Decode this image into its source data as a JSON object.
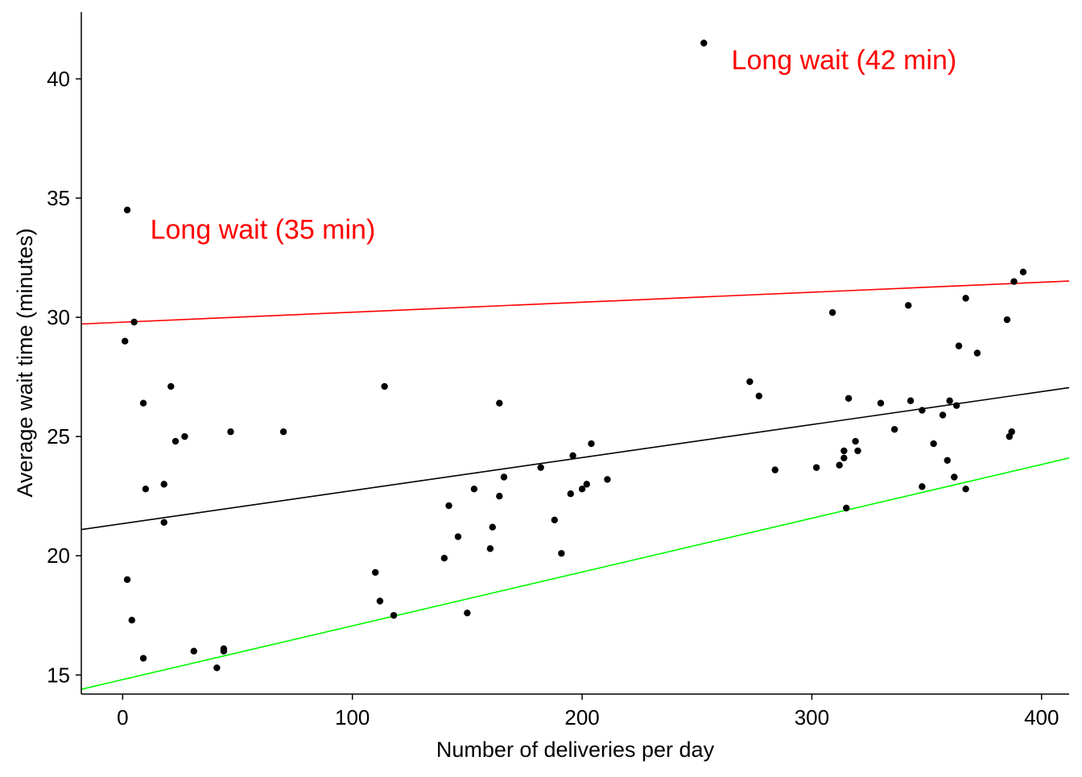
{
  "chart_data": {
    "type": "scatter",
    "title": "",
    "xlabel": "Number of deliveries per day",
    "ylabel": "Average wait time (minutes)",
    "xlim": [
      -18,
      412
    ],
    "ylim": [
      14.2,
      42.8
    ],
    "xticks": [
      0,
      100,
      200,
      300,
      400
    ],
    "yticks": [
      15,
      20,
      25,
      30,
      35,
      40
    ],
    "x_tick_labels": [
      "0",
      "100",
      "200",
      "300",
      "400"
    ],
    "y_tick_labels": [
      "15",
      "20",
      "25",
      "30",
      "35",
      "40"
    ],
    "grid": false,
    "point_color": "#000000",
    "points": [
      {
        "x": 1,
        "y": 29.0
      },
      {
        "x": 2,
        "y": 34.5
      },
      {
        "x": 2,
        "y": 19.0
      },
      {
        "x": 4,
        "y": 17.3
      },
      {
        "x": 5,
        "y": 29.8
      },
      {
        "x": 9,
        "y": 26.4
      },
      {
        "x": 9,
        "y": 15.7
      },
      {
        "x": 10,
        "y": 22.8
      },
      {
        "x": 18,
        "y": 23.0
      },
      {
        "x": 18,
        "y": 21.4
      },
      {
        "x": 21,
        "y": 27.1
      },
      {
        "x": 23,
        "y": 24.8
      },
      {
        "x": 27,
        "y": 25.0
      },
      {
        "x": 31,
        "y": 16.0
      },
      {
        "x": 41,
        "y": 15.3
      },
      {
        "x": 44,
        "y": 16.1
      },
      {
        "x": 44,
        "y": 16.0
      },
      {
        "x": 47,
        "y": 25.2
      },
      {
        "x": 70,
        "y": 25.2
      },
      {
        "x": 110,
        "y": 19.3
      },
      {
        "x": 112,
        "y": 18.1
      },
      {
        "x": 114,
        "y": 27.1
      },
      {
        "x": 118,
        "y": 17.5
      },
      {
        "x": 140,
        "y": 19.9
      },
      {
        "x": 142,
        "y": 22.1
      },
      {
        "x": 146,
        "y": 20.8
      },
      {
        "x": 150,
        "y": 17.6
      },
      {
        "x": 153,
        "y": 22.8
      },
      {
        "x": 160,
        "y": 20.3
      },
      {
        "x": 161,
        "y": 21.2
      },
      {
        "x": 164,
        "y": 26.4
      },
      {
        "x": 164,
        "y": 22.5
      },
      {
        "x": 166,
        "y": 23.3
      },
      {
        "x": 182,
        "y": 23.7
      },
      {
        "x": 188,
        "y": 21.5
      },
      {
        "x": 191,
        "y": 20.1
      },
      {
        "x": 195,
        "y": 22.6
      },
      {
        "x": 196,
        "y": 24.2
      },
      {
        "x": 200,
        "y": 22.8
      },
      {
        "x": 202,
        "y": 23.0
      },
      {
        "x": 204,
        "y": 24.7
      },
      {
        "x": 211,
        "y": 23.2
      },
      {
        "x": 253,
        "y": 41.5
      },
      {
        "x": 273,
        "y": 27.3
      },
      {
        "x": 277,
        "y": 26.7
      },
      {
        "x": 284,
        "y": 23.6
      },
      {
        "x": 302,
        "y": 23.7
      },
      {
        "x": 309,
        "y": 30.2
      },
      {
        "x": 312,
        "y": 23.8
      },
      {
        "x": 314,
        "y": 24.1
      },
      {
        "x": 314,
        "y": 24.4
      },
      {
        "x": 315,
        "y": 22.0
      },
      {
        "x": 316,
        "y": 26.6
      },
      {
        "x": 319,
        "y": 24.8
      },
      {
        "x": 320,
        "y": 24.4
      },
      {
        "x": 330,
        "y": 26.4
      },
      {
        "x": 336,
        "y": 25.3
      },
      {
        "x": 342,
        "y": 30.5
      },
      {
        "x": 343,
        "y": 26.5
      },
      {
        "x": 348,
        "y": 26.1
      },
      {
        "x": 348,
        "y": 22.9
      },
      {
        "x": 353,
        "y": 24.7
      },
      {
        "x": 357,
        "y": 25.9
      },
      {
        "x": 359,
        "y": 24.0
      },
      {
        "x": 360,
        "y": 26.5
      },
      {
        "x": 362,
        "y": 23.3
      },
      {
        "x": 363,
        "y": 26.3
      },
      {
        "x": 364,
        "y": 28.8
      },
      {
        "x": 367,
        "y": 30.8
      },
      {
        "x": 367,
        "y": 22.8
      },
      {
        "x": 372,
        "y": 28.5
      },
      {
        "x": 385,
        "y": 29.9
      },
      {
        "x": 386,
        "y": 25.0
      },
      {
        "x": 387,
        "y": 25.2
      },
      {
        "x": 388,
        "y": 31.5
      },
      {
        "x": 392,
        "y": 31.9
      }
    ],
    "lines": [
      {
        "color": "#ff0000",
        "x": [
          -18,
          412
        ],
        "y": [
          29.72,
          31.52
        ]
      },
      {
        "color": "#000000",
        "x": [
          -18,
          412
        ],
        "y": [
          21.1,
          27.05
        ]
      },
      {
        "color": "#00ff00",
        "x": [
          -18,
          412
        ],
        "y": [
          14.4,
          24.1
        ]
      }
    ],
    "annotations": [
      {
        "text": "Long wait (35 min)",
        "x": 12,
        "y": 33.7,
        "color": "#ff0000"
      },
      {
        "text": "Long wait (42 min)",
        "x": 265,
        "y": 40.8,
        "color": "#ff0000"
      }
    ]
  }
}
